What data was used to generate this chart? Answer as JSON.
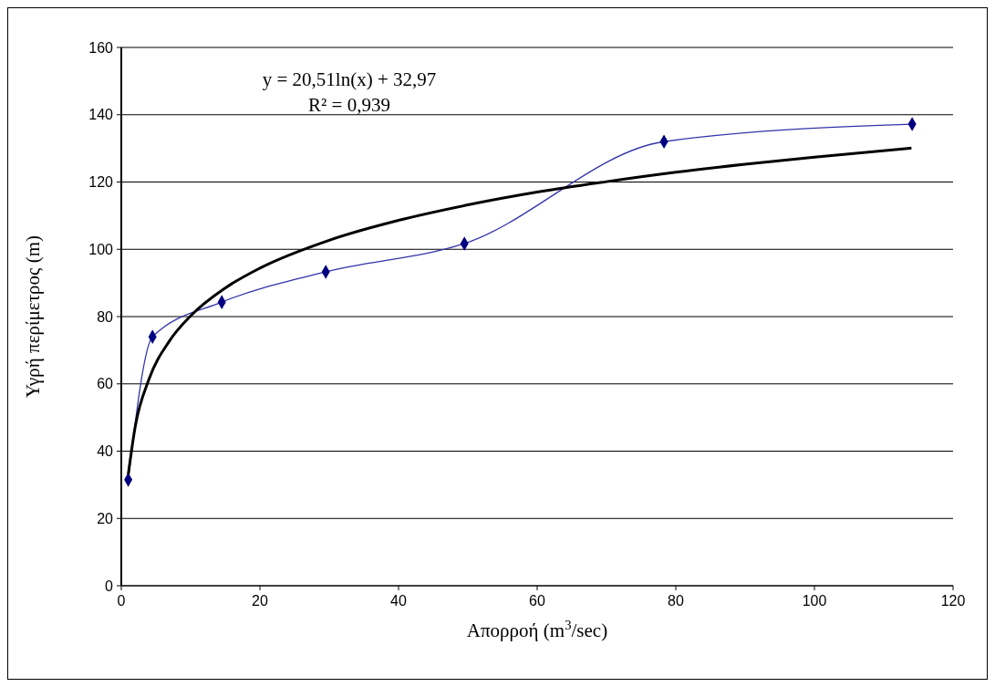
{
  "chart_data": {
    "type": "line",
    "xlabel": "Απορροή (m$^{3}$/sec)",
    "ylabel": "Υγρή περίμετρος (m)",
    "xlim": [
      0,
      120
    ],
    "xticks": [
      0,
      20,
      40,
      60,
      80,
      100,
      120
    ],
    "ylim": [
      0,
      160
    ],
    "yticks": [
      0,
      20,
      40,
      60,
      80,
      100,
      120,
      140,
      160
    ],
    "grid": "y",
    "marker": "diamond",
    "line_style": "solid",
    "annotations": [
      "y = 20,51ln(x) + 32,97",
      "R² = 0,939"
    ],
    "series": [
      {
        "color": "#3333aa",
        "x": [
          1,
          4.5,
          14.5,
          29.5,
          49.5,
          78.3,
          114.1
        ],
        "values": [
          31.5,
          74,
          84.3,
          93.3,
          101.7,
          132,
          137.2
        ]
      },
      {
        "type": "line",
        "marker": "none",
        "color": "#000000",
        "x": [
          1,
          2,
          4,
          7,
          10,
          15,
          20,
          30,
          40,
          50,
          60,
          70,
          80,
          90,
          100,
          114
        ],
        "values": [
          33.0,
          47.2,
          61.4,
          72.9,
          80.2,
          88.5,
          94.4,
          102.7,
          108.6,
          113.2,
          117.0,
          120.1,
          122.9,
          125.3,
          127.4,
          130.1
        ]
      }
    ]
  }
}
